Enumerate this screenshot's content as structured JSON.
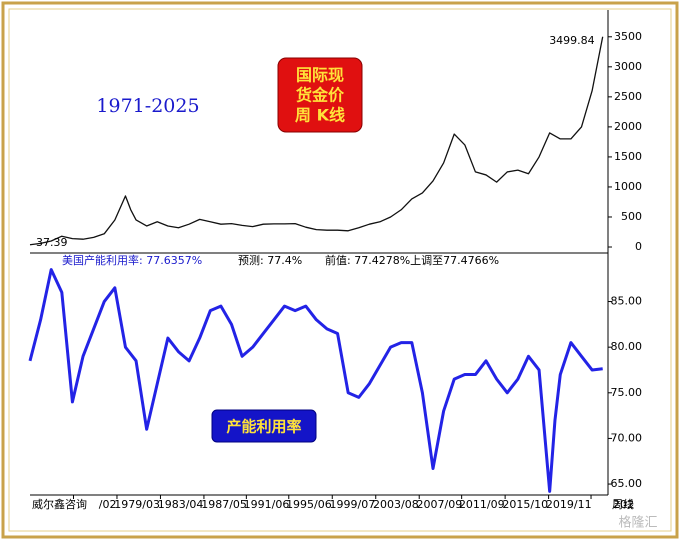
{
  "chart_data": [
    {
      "type": "line",
      "title": "1971-2025",
      "badge": [
        "国际现",
        "货金价",
        "周 K线"
      ],
      "color": "#111111",
      "x": [
        1971,
        1972,
        1973,
        1974,
        1975,
        1976,
        1977,
        1978,
        1979,
        1980,
        1980.5,
        1981,
        1982,
        1983,
        1984,
        1985,
        1986,
        1987,
        1988,
        1989,
        1990,
        1991,
        1992,
        1993,
        1994,
        1995,
        1996,
        1997,
        1998,
        1999,
        2000,
        2001,
        2002,
        2003,
        2004,
        2005,
        2006,
        2007,
        2008,
        2009,
        2010,
        2011,
        2012,
        2013,
        2014,
        2015,
        2016,
        2017,
        2018,
        2019,
        2020,
        2021,
        2022,
        2023,
        2024,
        2025
      ],
      "values": [
        37.39,
        60,
        100,
        180,
        140,
        130,
        160,
        220,
        450,
        850,
        620,
        450,
        350,
        420,
        350,
        320,
        380,
        460,
        420,
        380,
        390,
        360,
        340,
        380,
        385,
        385,
        390,
        330,
        290,
        280,
        280,
        270,
        320,
        380,
        420,
        500,
        620,
        800,
        900,
        1100,
        1400,
        1880,
        1700,
        1250,
        1200,
        1080,
        1250,
        1280,
        1220,
        1500,
        1900,
        1800,
        1800,
        2000,
        2600,
        3499.84
      ],
      "value_labels": [
        "37.39",
        null,
        null,
        null,
        null,
        null,
        null,
        null,
        null,
        null,
        null,
        null,
        null,
        null,
        null,
        null,
        null,
        null,
        null,
        null,
        null,
        null,
        null,
        null,
        null,
        null,
        null,
        null,
        null,
        null,
        null,
        null,
        null,
        null,
        null,
        null,
        null,
        null,
        null,
        null,
        null,
        null,
        null,
        null,
        null,
        null,
        null,
        null,
        null,
        null,
        null,
        null,
        null,
        null,
        null,
        "3499.84"
      ],
      "xlim": [
        1971,
        2025.5
      ],
      "ylim": [
        -83,
        3946
      ],
      "yticks": [
        0,
        500,
        1000,
        1500,
        2000,
        2500,
        3000,
        3500
      ]
    },
    {
      "type": "line",
      "header": [
        "美国产能利用率: 77.6357%",
        "预测: 77.4%",
        "前值: 77.4278%上调至77.4766%"
      ],
      "badge": [
        "产能利用率"
      ],
      "color": "#2323e6",
      "x": [
        1971,
        1972,
        1973,
        1974,
        1975,
        1976,
        1977,
        1978,
        1979,
        1980,
        1981,
        1982,
        1983,
        1984,
        1985,
        1986,
        1987,
        1988,
        1989,
        1990,
        1991,
        1992,
        1993,
        1994,
        1995,
        1996,
        1997,
        1998,
        1999,
        2000,
        2001,
        2002,
        2003,
        2004,
        2005,
        2006,
        2007,
        2008,
        2009,
        2010,
        2011,
        2012,
        2013,
        2014,
        2015,
        2016,
        2017,
        2018,
        2019,
        2020,
        2020.5,
        2021,
        2022,
        2023,
        2024,
        2025
      ],
      "values": [
        78.5,
        83,
        88.5,
        86,
        74,
        79,
        82,
        85,
        86.5,
        80,
        78.5,
        71,
        76,
        81,
        79.5,
        78.5,
        81,
        84,
        84.5,
        82.5,
        79,
        80,
        81.5,
        83,
        84.5,
        84,
        84.5,
        83,
        82,
        81.5,
        75,
        74.5,
        76,
        78,
        80,
        80.5,
        80.5,
        75,
        66.7,
        73,
        76.5,
        77,
        77,
        78.5,
        76.5,
        75,
        76.5,
        79,
        77.5,
        64.2,
        72,
        77,
        80.5,
        79,
        77.5,
        77.6357
      ],
      "xlim": [
        1971,
        2025.5
      ],
      "ylim": [
        63.8,
        90.1
      ],
      "yticks": [
        {
          "value": 65,
          "label": "65.00"
        },
        {
          "value": 70,
          "label": "70.00"
        },
        {
          "value": 75,
          "label": "75.00"
        },
        {
          "value": 80,
          "label": "80.00"
        },
        {
          "value": 85,
          "label": "85.00"
        }
      ],
      "xticks": [
        {
          "value": 1975.1,
          "label": "/02"
        },
        {
          "value": 1979.2,
          "label": "1979/03"
        },
        {
          "value": 1983.3,
          "label": "1983/04"
        },
        {
          "value": 1987.4,
          "label": "1987/05"
        },
        {
          "value": 1991.4,
          "label": "1991/06"
        },
        {
          "value": 1995.4,
          "label": "1995/06"
        },
        {
          "value": 1999.5,
          "label": "1999/07"
        },
        {
          "value": 2003.6,
          "label": "2003/08"
        },
        {
          "value": 2007.7,
          "label": "2007/09"
        },
        {
          "value": 2011.7,
          "label": "2011/09"
        },
        {
          "value": 2015.8,
          "label": "2015/10"
        },
        {
          "value": 2019.9,
          "label": "2019/11"
        },
        {
          "value": 2023.9,
          "label": "202"
        }
      ]
    }
  ],
  "footer": {
    "source": "威尔鑫咨询",
    "period": "周线",
    "watermark": "格隆汇"
  }
}
